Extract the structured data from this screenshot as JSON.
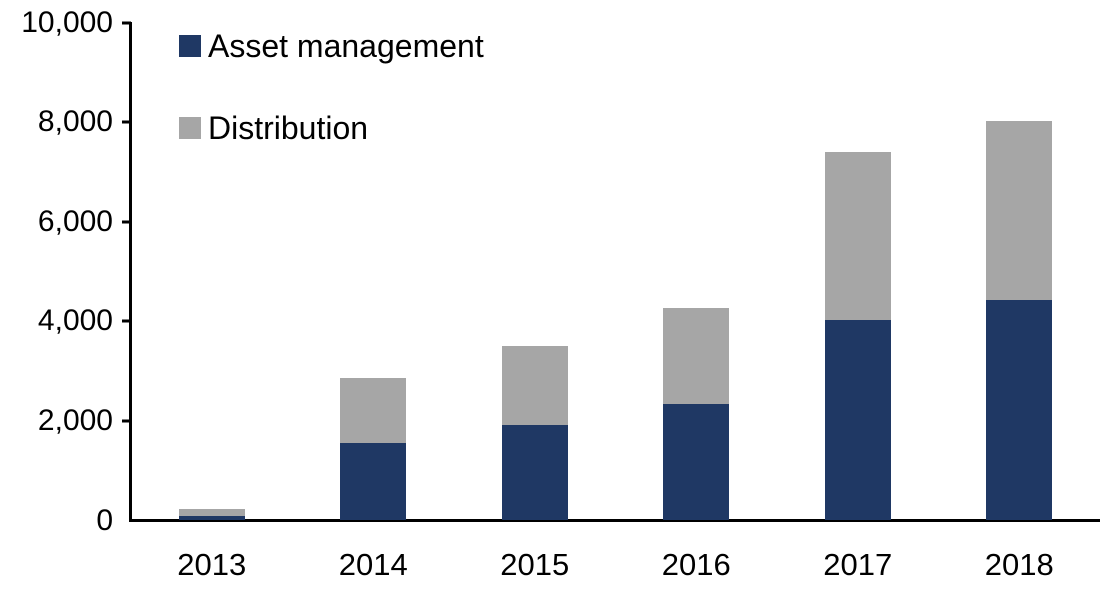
{
  "chart_data": {
    "type": "bar",
    "stacked": true,
    "title": "",
    "categories": [
      "2013",
      "2014",
      "2015",
      "2016",
      "2017",
      "2018"
    ],
    "series": [
      {
        "name": "Asset management",
        "color": "#1f3864",
        "values": [
          100,
          1560,
          1920,
          2330,
          4030,
          4430
        ]
      },
      {
        "name": "Distribution",
        "color": "#a6a6a6",
        "values": [
          130,
          1310,
          1580,
          1930,
          3370,
          3590
        ]
      }
    ],
    "totals": [
      230,
      2870,
      3500,
      4260,
      7400,
      8020
    ],
    "xlabel": "",
    "ylabel": "",
    "ylim": [
      0,
      10000
    ],
    "yticks": [
      {
        "value": 0,
        "label": "0"
      },
      {
        "value": 2000,
        "label": "2,000"
      },
      {
        "value": 4000,
        "label": "4,000"
      },
      {
        "value": 6000,
        "label": "6,000"
      },
      {
        "value": 8000,
        "label": "8,000"
      },
      {
        "value": 10000,
        "label": "10,000"
      }
    ],
    "grid": false,
    "legend_position": "top-left",
    "axis_color": "#000000",
    "text_color": "#000000",
    "background_color": "#ffffff"
  }
}
